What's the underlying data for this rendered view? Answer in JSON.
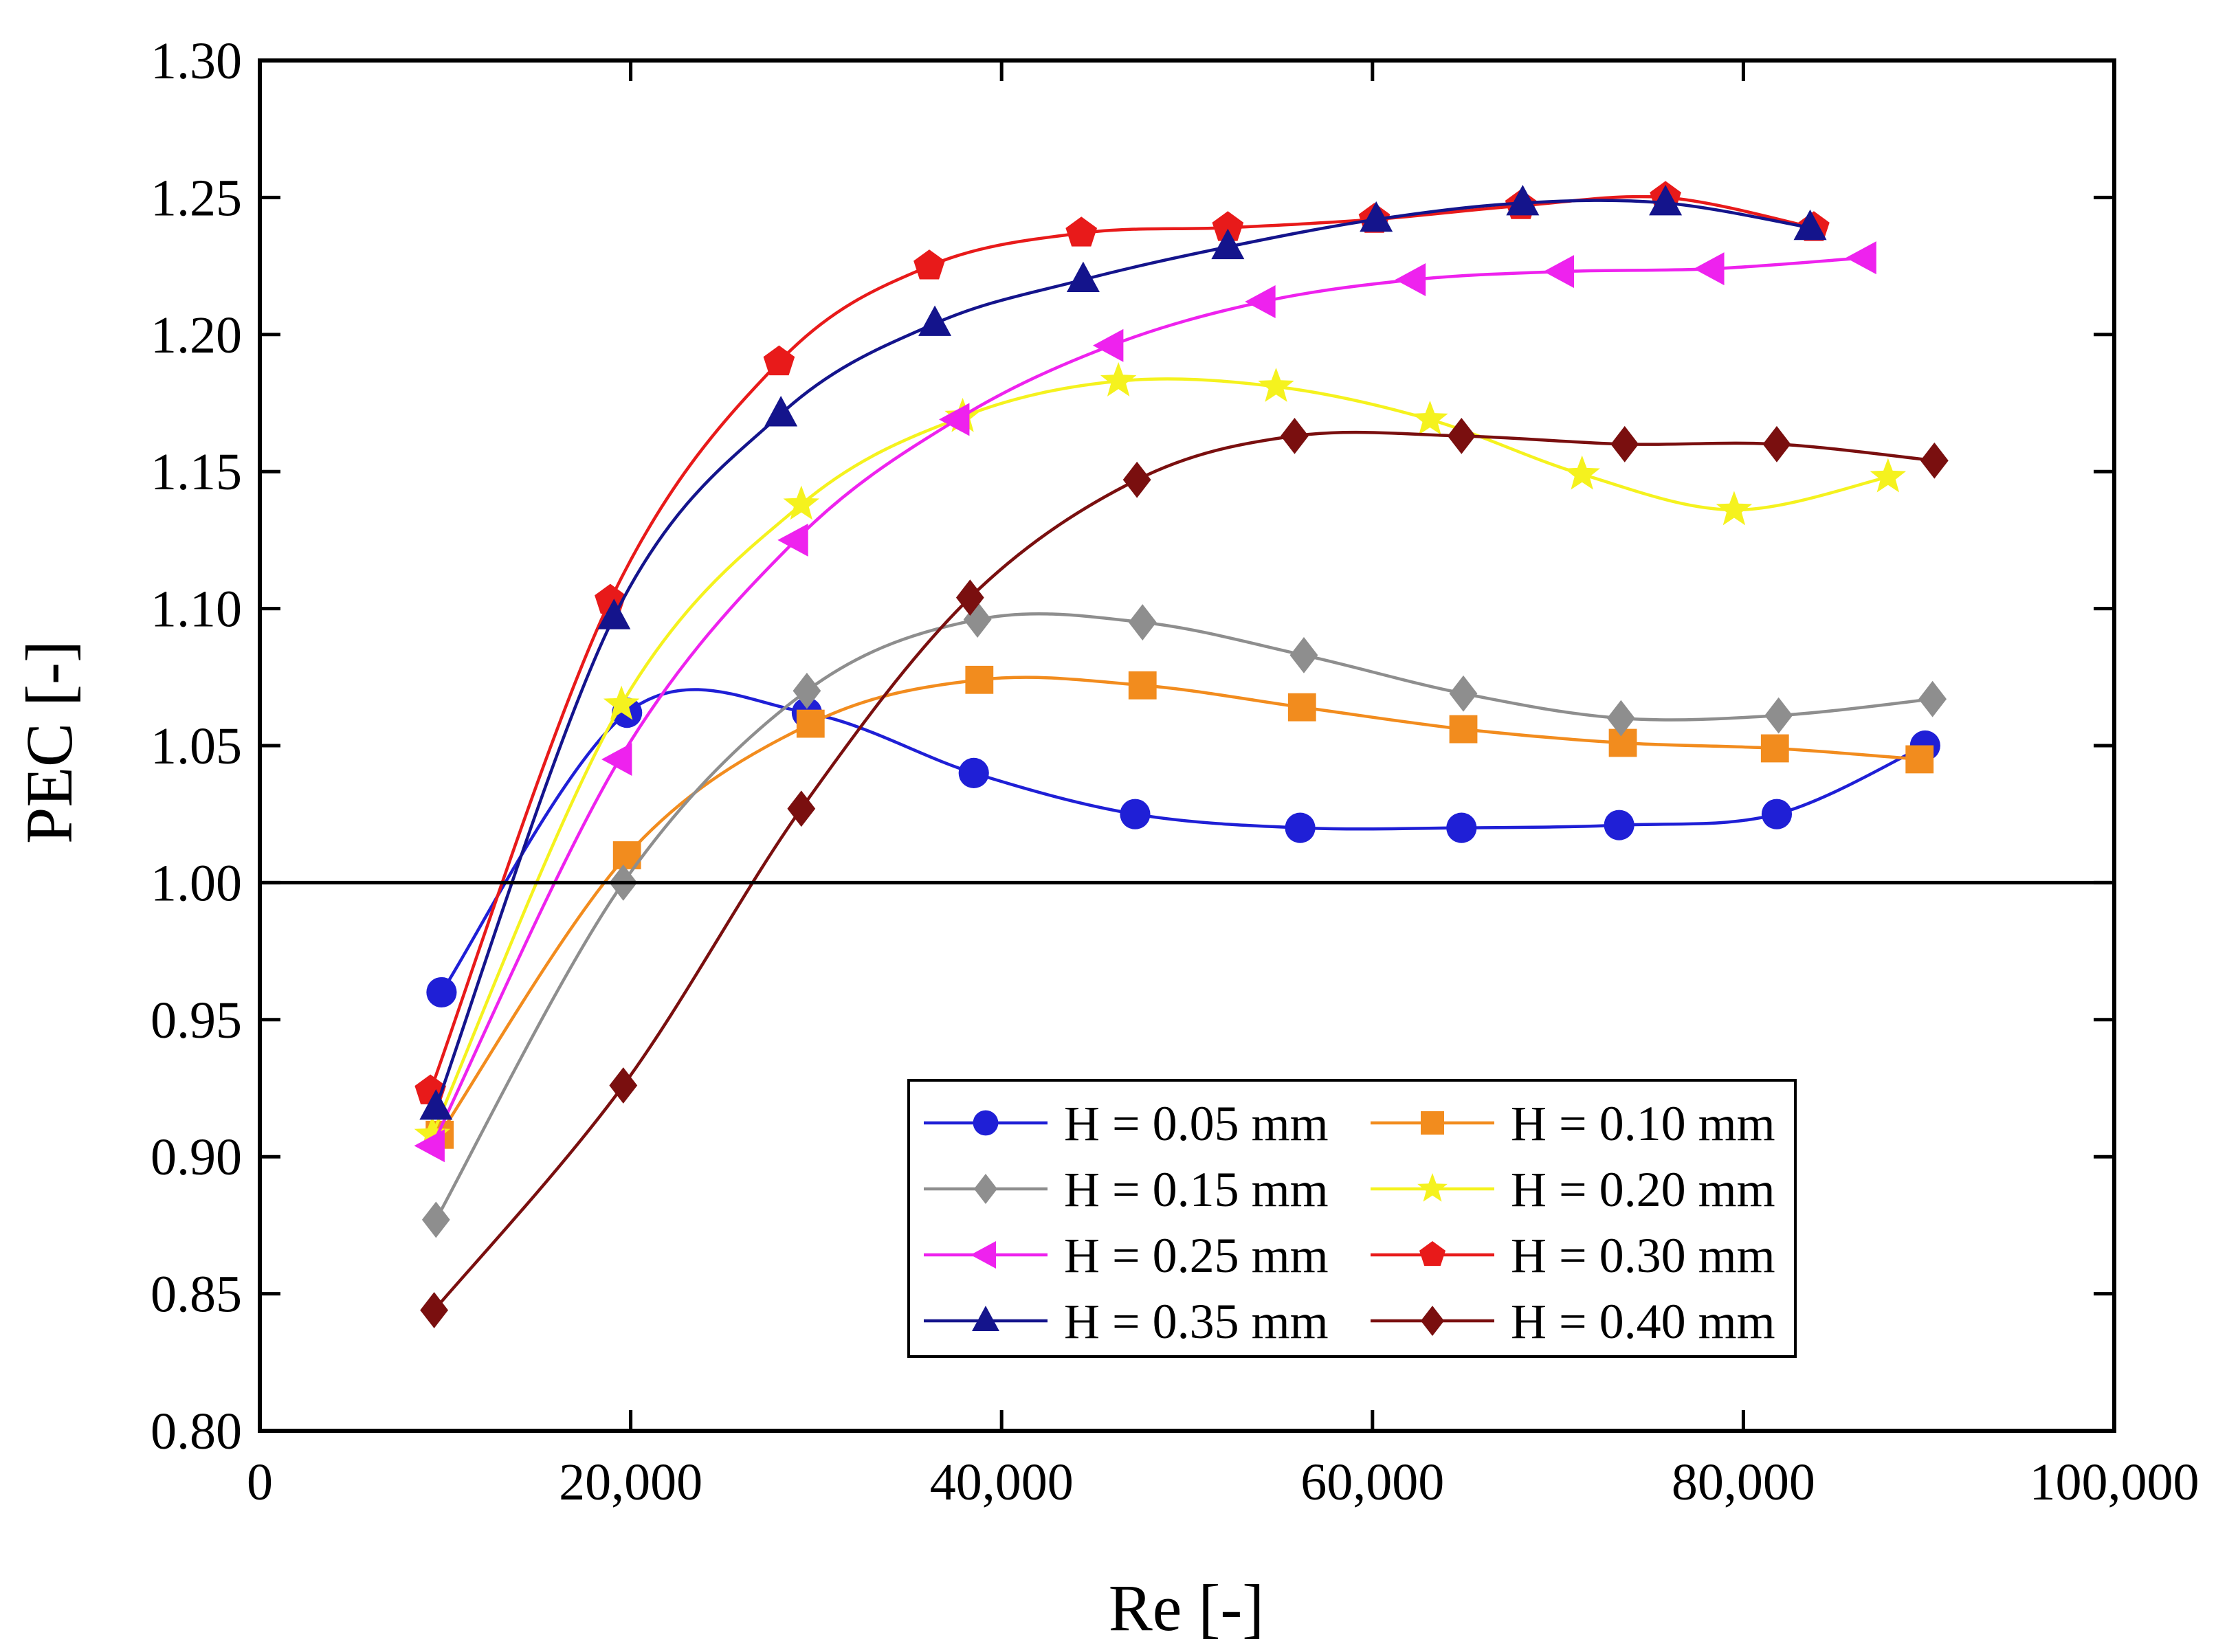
{
  "chart_data": {
    "type": "line",
    "title": "",
    "xlabel": "Re [-]",
    "ylabel": "PEC [-]",
    "xlim": [
      0,
      100000
    ],
    "ylim": [
      0.8,
      1.3
    ],
    "xticks": [
      0,
      20000,
      40000,
      60000,
      80000,
      100000
    ],
    "xtick_labels": [
      "0",
      "20,000",
      "40,000",
      "60,000",
      "80,000",
      "100,000"
    ],
    "yticks": [
      0.8,
      0.85,
      0.9,
      0.95,
      1.0,
      1.05,
      1.1,
      1.15,
      1.2,
      1.25,
      1.3
    ],
    "ytick_labels": [
      "0.80",
      "0.85",
      "0.90",
      "0.95",
      "1.00",
      "1.05",
      "1.10",
      "1.15",
      "1.20",
      "1.25",
      "1.30"
    ],
    "reference_line": 1.0,
    "grid": false,
    "legend_position": "bottom-right",
    "series": [
      {
        "name": "H = 0.05 mm",
        "color": "#1f1fd6",
        "marker": "circle",
        "x": [
          9800,
          19800,
          29500,
          38500,
          47200,
          56100,
          64800,
          73300,
          81800,
          89800
        ],
        "y": [
          0.96,
          1.062,
          1.062,
          1.04,
          1.025,
          1.02,
          1.02,
          1.021,
          1.025,
          1.05
        ]
      },
      {
        "name": "H = 0.10 mm",
        "color": "#f28c1e",
        "marker": "square",
        "x": [
          9700,
          19800,
          29700,
          38800,
          47600,
          56200,
          64900,
          73500,
          81700,
          89500
        ],
        "y": [
          0.908,
          1.01,
          1.058,
          1.074,
          1.072,
          1.064,
          1.056,
          1.051,
          1.049,
          1.045
        ]
      },
      {
        "name": "H = 0.15 mm",
        "color": "#8e8e8e",
        "marker": "diamond",
        "x": [
          9500,
          19600,
          29500,
          38700,
          47600,
          56300,
          64900,
          73400,
          81900,
          90200
        ],
        "y": [
          0.877,
          1.0,
          1.07,
          1.096,
          1.095,
          1.083,
          1.069,
          1.06,
          1.061,
          1.067
        ]
      },
      {
        "name": "H = 0.20 mm",
        "color": "#f5f21e",
        "marker": "star",
        "x": [
          9300,
          19500,
          29200,
          37900,
          46300,
          54800,
          63100,
          71300,
          79500,
          87800
        ],
        "y": [
          0.908,
          1.065,
          1.138,
          1.17,
          1.183,
          1.181,
          1.169,
          1.149,
          1.136,
          1.148
        ]
      },
      {
        "name": "H = 0.25 mm",
        "color": "#ee22ee",
        "marker": "triangle-left",
        "x": [
          9300,
          19400,
          28900,
          37600,
          45900,
          54100,
          62200,
          70200,
          78300,
          86500
        ],
        "y": [
          0.904,
          1.045,
          1.125,
          1.169,
          1.196,
          1.212,
          1.22,
          1.223,
          1.224,
          1.228
        ]
      },
      {
        "name": "H = 0.30 mm",
        "color": "#e81a1a",
        "marker": "pentagon",
        "x": [
          9200,
          18900,
          28000,
          36100,
          44300,
          52200,
          60100,
          68000,
          75800,
          83800
        ],
        "y": [
          0.924,
          1.103,
          1.19,
          1.225,
          1.237,
          1.239,
          1.242,
          1.247,
          1.25,
          1.239
        ]
      },
      {
        "name": "H = 0.35 mm",
        "color": "#14148c",
        "marker": "triangle-up",
        "x": [
          9500,
          19100,
          28100,
          36400,
          44400,
          52200,
          60200,
          68100,
          75800,
          83600
        ],
        "y": [
          0.918,
          1.097,
          1.171,
          1.204,
          1.22,
          1.232,
          1.242,
          1.248,
          1.248,
          1.239
        ]
      },
      {
        "name": "H = 0.40 mm",
        "color": "#7a0f0f",
        "marker": "diamond",
        "x": [
          9400,
          19600,
          29200,
          38300,
          47300,
          55800,
          64800,
          73600,
          81800,
          90300
        ],
        "y": [
          0.844,
          0.926,
          1.027,
          1.104,
          1.147,
          1.163,
          1.163,
          1.16,
          1.16,
          1.154
        ]
      }
    ]
  }
}
